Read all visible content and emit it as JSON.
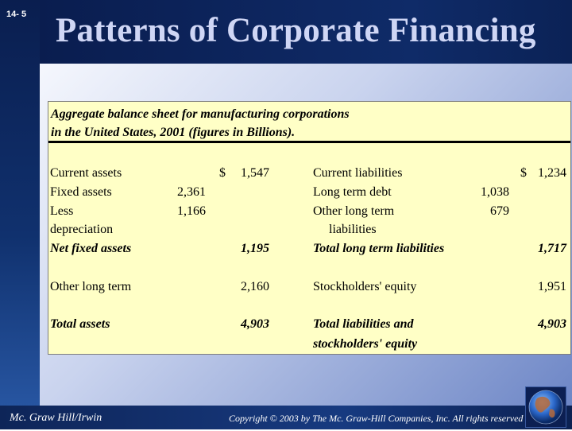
{
  "slide": {
    "number": "14- 5",
    "title": "Patterns of Corporate Financing"
  },
  "table": {
    "caption_line1": "Aggregate balance sheet for manufacturing corporations",
    "caption_line2": "in the United States, 2001 (figures in Billions).",
    "assets": {
      "current_assets_label": "Current assets",
      "current_assets_currency": "$",
      "current_assets_value": "1,547",
      "fixed_assets_label": "Fixed assets",
      "fixed_assets_value": "2,361",
      "less_label": "Less",
      "depreciation_label": "depreciation",
      "depreciation_value": "1,166",
      "net_fixed_label": "Net fixed assets",
      "net_fixed_value": "1,195",
      "other_long_term_label": "Other long term",
      "other_long_term_value": "2,160",
      "total_assets_label": "Total assets",
      "total_assets_value": "4,903"
    },
    "liabilities": {
      "current_liabilities_label": "Current liabilities",
      "current_liabilities_currency": "$",
      "current_liabilities_value": "1,234",
      "long_term_debt_label": "Long term debt",
      "long_term_debt_value": "1,038",
      "other_long_term_label": "Other long term",
      "other_long_term_label2": "liabilities",
      "other_long_term_value": "679",
      "total_long_term_label": "Total long term liabilities",
      "total_long_term_value": "1,717",
      "equity_label": "Stockholders' equity",
      "equity_value": "1,951",
      "total_liab_label1": "Total liabilities and",
      "total_liab_label2": "stockholders' equity",
      "total_liab_value": "4,903"
    }
  },
  "footer": {
    "publisher": "Mc. Graw Hill/Irwin",
    "copyright": "Copyright © 2003 by The Mc. Graw-Hill Companies, Inc. All rights reserved"
  },
  "icons": {
    "globe": "globe-icon"
  },
  "colors": {
    "table_bg": "#ffffc6",
    "header_bg": "#0f2b68",
    "title": "#cfd6f5"
  }
}
